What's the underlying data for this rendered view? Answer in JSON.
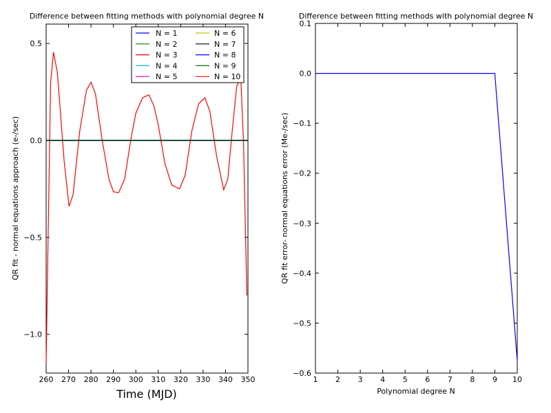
{
  "chart_data": [
    {
      "type": "line",
      "title": "Difference between fitting methods with polynomial degree N",
      "xlabel": "Time (MJD)",
      "ylabel": "QR fit - normal equations approach (e-/sec)",
      "xlim": [
        260,
        350
      ],
      "ylim": [
        -1.2,
        0.6
      ],
      "x_ticks": [
        "260",
        "270",
        "280",
        "290",
        "300",
        "310",
        "320",
        "330",
        "340",
        "350"
      ],
      "y_ticks": [
        "0.5",
        "0.0",
        "−0.5",
        "−1.0"
      ],
      "grid": false,
      "legend_position": "top-right",
      "series": [
        {
          "name": "N = 1",
          "color": "#0000ff",
          "x": [
            260,
            350
          ],
          "y": [
            0,
            0
          ]
        },
        {
          "name": "N = 2",
          "color": "#008000",
          "x": [
            260,
            350
          ],
          "y": [
            0,
            0
          ]
        },
        {
          "name": "N = 3",
          "color": "#ff0000",
          "x": [
            260,
            350
          ],
          "y": [
            0,
            0
          ]
        },
        {
          "name": "N = 4",
          "color": "#00bfbf",
          "x": [
            260,
            350
          ],
          "y": [
            0,
            0
          ]
        },
        {
          "name": "N = 5",
          "color": "#bf00bf",
          "x": [
            260,
            350
          ],
          "y": [
            0,
            0
          ]
        },
        {
          "name": "N = 6",
          "color": "#bfbf00",
          "x": [
            260,
            350
          ],
          "y": [
            0,
            0
          ]
        },
        {
          "name": "N = 7",
          "color": "#000000",
          "x": [
            260,
            350
          ],
          "y": [
            0,
            0
          ]
        },
        {
          "name": "N = 8",
          "color": "#0000ff",
          "x": [
            260,
            350
          ],
          "y": [
            0,
            0
          ]
        },
        {
          "name": "N = 9",
          "color": "#008000",
          "x": [
            260,
            350
          ],
          "y": [
            0,
            0
          ]
        },
        {
          "name": "N = 10",
          "color": "#ff0000",
          "x": [
            260,
            261,
            262,
            263.3,
            265,
            268,
            270.2,
            272,
            275,
            278,
            280,
            282,
            285,
            288,
            290,
            292.3,
            295,
            298,
            300,
            303,
            305.8,
            308,
            310,
            313,
            316,
            319.5,
            322,
            325,
            328,
            330.8,
            333,
            336,
            339.2,
            341,
            343,
            345,
            346.8,
            348,
            349.5
          ],
          "y": [
            -1.15,
            -0.4,
            0.3,
            0.455,
            0.35,
            -0.1,
            -0.34,
            -0.28,
            0.05,
            0.26,
            0.3,
            0.24,
            0.0,
            -0.2,
            -0.265,
            -0.27,
            -0.2,
            0.02,
            0.14,
            0.22,
            0.235,
            0.18,
            0.08,
            -0.12,
            -0.23,
            -0.25,
            -0.18,
            0.05,
            0.19,
            0.22,
            0.15,
            -0.08,
            -0.255,
            -0.2,
            0.05,
            0.28,
            0.32,
            0.0,
            -0.8
          ]
        }
      ]
    },
    {
      "type": "line",
      "title": "Difference between fitting methods with polynomial degree N",
      "xlabel": "Polynomial degree N",
      "ylabel": "QR fit error- normal equations error (Me-/sec)",
      "xlim": [
        1,
        10
      ],
      "ylim": [
        -0.6,
        0.1
      ],
      "x_ticks": [
        "1",
        "2",
        "3",
        "4",
        "5",
        "6",
        "7",
        "8",
        "9",
        "10"
      ],
      "y_ticks": [
        "0.1",
        "0.0",
        "−0.1",
        "−0.2",
        "−0.3",
        "−0.4",
        "−0.5",
        "−0.6"
      ],
      "grid": false,
      "series": [
        {
          "color": "#0000ff",
          "x": [
            1,
            2,
            3,
            4,
            5,
            6,
            7,
            8,
            9,
            10
          ],
          "y": [
            0,
            0,
            0,
            0,
            0,
            0,
            0,
            0,
            0,
            -0.575
          ]
        }
      ]
    }
  ]
}
